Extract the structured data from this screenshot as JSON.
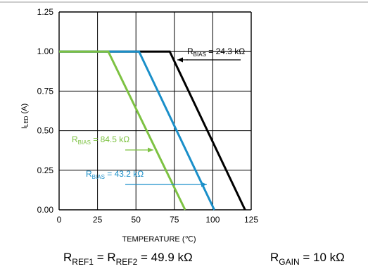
{
  "chart_data": {
    "type": "line",
    "xlabel": "TEMPERATURE (℃)",
    "ylabel": {
      "main": "I",
      "sub": "LED",
      "rest": " (A)"
    },
    "xlim": [
      0,
      125
    ],
    "ylim": [
      0,
      1.25
    ],
    "x_ticks": [
      "0",
      "25",
      "50",
      "75",
      "100",
      "125"
    ],
    "y_ticks": [
      "0.00",
      "0.25",
      "0.50",
      "0.75",
      "1.00",
      "1.25"
    ],
    "grid": true,
    "series": [
      {
        "name": "R_BIAS = 24.3 kΩ",
        "color": "#000000",
        "x": [
          0,
          72,
          121
        ],
        "y": [
          1.0,
          1.0,
          0.0
        ]
      },
      {
        "name": "R_BIAS = 43.2 kΩ",
        "color": "#1a8fc9",
        "x": [
          0,
          52,
          101
        ],
        "y": [
          1.0,
          1.0,
          0.0
        ]
      },
      {
        "name": "R_BIAS = 84.5 kΩ",
        "color": "#7dc242",
        "x": [
          0,
          32,
          82
        ],
        "y": [
          1.0,
          1.0,
          0.0
        ]
      }
    ],
    "annotations": [
      {
        "main": "R",
        "sub": "BIAS",
        "rest": " = 24.3 kΩ",
        "color": "#000000"
      },
      {
        "main": "R",
        "sub": "BIAS",
        "rest": " = 84.5 kΩ",
        "color": "#7dc242"
      },
      {
        "main": "R",
        "sub": "BIAS",
        "rest": " = 43.2 kΩ",
        "color": "#1a8fc9"
      }
    ]
  },
  "footer": {
    "left": {
      "r1": "R",
      "r1_sub": "REF1",
      "eq1": " = R",
      "r2_sub": "REF2",
      "val": " = 49.9 kΩ"
    },
    "right": {
      "r": "R",
      "r_sub": "GAIN",
      "val": " = 10 kΩ"
    }
  }
}
